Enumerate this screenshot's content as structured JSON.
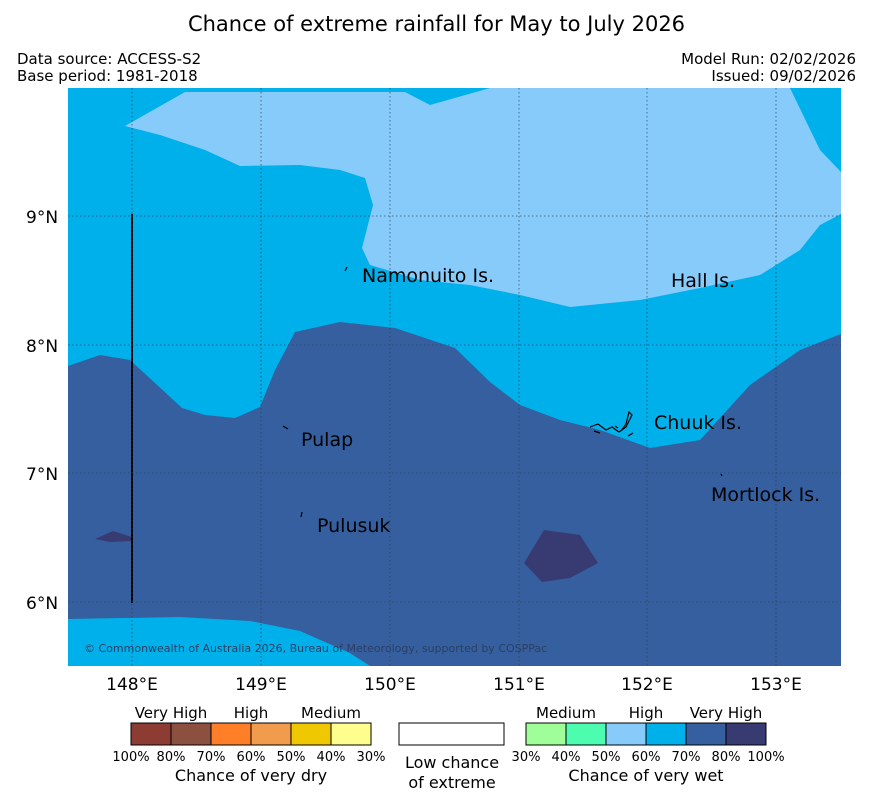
{
  "header": {
    "title": "Chance of extreme rainfall for May to July 2026",
    "data_source": "Data source: ACCESS-S2",
    "base_period": "Base period: 1981-2018",
    "model_run": "Model Run: 02/02/2026",
    "issued": "Issued: 09/02/2026"
  },
  "map": {
    "latitude_labels": [
      "9°N",
      "8°N",
      "7°N",
      "6°N"
    ],
    "longitude_labels": [
      "148°E",
      "149°E",
      "150°E",
      "151°E",
      "152°E",
      "153°E"
    ],
    "places": {
      "namonuito": "Namonuito Is.",
      "hall": "Hall Is.",
      "pulap": "Pulap",
      "chuuk": "Chuuk Is.",
      "mortlock": "Mortlock Is.",
      "pulusuk": "Pulusuk"
    },
    "copyright": "© Commonwealth of Australia 2026, Bureau of Meteorology, supported by COSPPac",
    "fill_colors": {
      "wet_60_70": "#00b0ea",
      "wet_50_60": "#87cbfb",
      "wet_70_80": "#355f9e",
      "wet_80_100": "#373b72"
    }
  },
  "legend": {
    "dry": {
      "heads": [
        "Very High",
        "High",
        "Medium"
      ],
      "ticks": [
        "100%",
        "80%",
        "70%",
        "60%",
        "50%",
        "40%",
        "30%"
      ],
      "colors": [
        "#8d3c34",
        "#8b5040",
        "#fe7f27",
        "#f09c4c",
        "#efc801",
        "#fefe8f"
      ],
      "caption": "Chance of very dry"
    },
    "neutral": {
      "line1": "Low chance",
      "line2": "of extreme"
    },
    "wet": {
      "heads": [
        "Medium",
        "High",
        "Very High"
      ],
      "ticks": [
        "30%",
        "40%",
        "50%",
        "60%",
        "70%",
        "80%",
        "100%"
      ],
      "colors": [
        "#a0fe98",
        "#4dfdaf",
        "#87cbfb",
        "#00b0ea",
        "#355f9e",
        "#373b72"
      ],
      "caption": "Chance of very wet"
    }
  }
}
